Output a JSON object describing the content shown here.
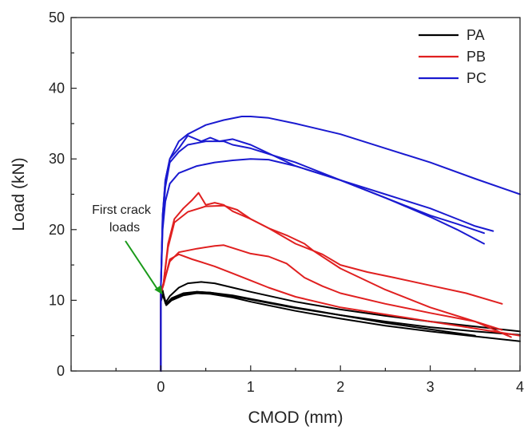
{
  "chart_data": {
    "type": "line",
    "title": "",
    "xlabel": "CMOD (mm)",
    "ylabel": "Load (kN)",
    "xlim": [
      -1,
      4
    ],
    "ylim": [
      0,
      50
    ],
    "xticks": [
      0,
      1,
      2,
      3,
      4
    ],
    "yticks": [
      0,
      10,
      20,
      30,
      40,
      50
    ],
    "grid": false,
    "legend_position": "top-right",
    "annotation": {
      "lines": [
        "First crack",
        "loads"
      ],
      "arrow_color": "#1a9a1a",
      "target": [
        0.02,
        10.8
      ]
    },
    "series": [
      {
        "name": "PA",
        "color": "#000000",
        "show_in_legend": true,
        "x": [
          0,
          0,
          0.02,
          0.05,
          0.1,
          0.2,
          0.3,
          0.45,
          0.6,
          0.8,
          1.0,
          1.5,
          2.0,
          2.5,
          3.0,
          3.5,
          4.0
        ],
        "y": [
          0,
          10.5,
          11.4,
          9.6,
          10.6,
          11.8,
          12.4,
          12.6,
          12.4,
          11.8,
          11.2,
          9.8,
          8.7,
          7.8,
          7.0,
          6.3,
          5.6
        ]
      },
      {
        "name": "",
        "color": "#000000",
        "show_in_legend": false,
        "x": [
          0,
          0,
          0.02,
          0.06,
          0.12,
          0.25,
          0.4,
          0.55,
          0.8,
          1.0,
          1.5,
          2.0,
          2.5,
          3.0,
          3.5,
          4.0
        ],
        "y": [
          0,
          10.0,
          11.0,
          9.4,
          10.2,
          10.9,
          11.2,
          11.1,
          10.6,
          10.1,
          8.9,
          7.9,
          7.0,
          6.2,
          5.6,
          5.1
        ]
      },
      {
        "name": "",
        "color": "#000000",
        "show_in_legend": false,
        "x": [
          0,
          0,
          0.02,
          0.06,
          0.12,
          0.25,
          0.4,
          0.55,
          0.8,
          1.0,
          1.5,
          2.0,
          2.5,
          3.0,
          3.5,
          4.0
        ],
        "y": [
          0,
          9.8,
          10.8,
          9.3,
          10.0,
          10.7,
          11.0,
          10.9,
          10.4,
          9.8,
          8.5,
          7.4,
          6.4,
          5.6,
          4.9,
          4.2
        ]
      },
      {
        "name": "",
        "color": "#000000",
        "show_in_legend": false,
        "x": [
          0,
          0,
          0.02,
          0.06,
          0.12,
          0.25,
          0.4,
          0.55,
          0.8,
          1.0,
          1.5,
          2.0,
          2.5,
          3.0,
          3.5
        ],
        "y": [
          0,
          10.2,
          11.2,
          9.5,
          10.3,
          11.0,
          11.2,
          11.1,
          10.7,
          10.2,
          9.0,
          7.9,
          6.8,
          5.9,
          5.0
        ]
      },
      {
        "name": "PB",
        "color": "#e02020",
        "show_in_legend": true,
        "x": [
          0,
          0,
          0.03,
          0.08,
          0.15,
          0.25,
          0.35,
          0.42,
          0.5,
          0.6,
          0.7,
          0.8,
          1.0,
          1.2,
          1.5,
          1.8,
          2.0,
          2.3,
          2.6,
          3.0,
          3.4,
          3.8
        ],
        "y": [
          0,
          11.0,
          12.5,
          18.0,
          21.5,
          23.0,
          24.2,
          25.2,
          23.5,
          23.8,
          23.5,
          22.6,
          21.5,
          20.2,
          18.0,
          16.5,
          15.0,
          14.0,
          13.2,
          12.1,
          11.0,
          9.5
        ]
      },
      {
        "name": "",
        "color": "#e02020",
        "show_in_legend": false,
        "x": [
          0,
          0,
          0.03,
          0.08,
          0.15,
          0.3,
          0.5,
          0.7,
          0.85,
          1.0,
          1.2,
          1.4,
          1.6,
          1.7,
          2.0,
          2.5,
          3.0,
          3.5,
          3.9
        ],
        "y": [
          0,
          11.0,
          12.5,
          17.5,
          21.0,
          22.5,
          23.3,
          23.4,
          22.8,
          21.5,
          20.2,
          19.2,
          18.0,
          17.0,
          14.5,
          11.5,
          9.0,
          7.0,
          4.8
        ]
      },
      {
        "name": "",
        "color": "#e02020",
        "show_in_legend": false,
        "x": [
          0,
          0,
          0.03,
          0.1,
          0.2,
          0.4,
          0.6,
          0.7,
          0.8,
          1.0,
          1.2,
          1.4,
          1.6,
          1.8,
          2.0,
          2.5,
          3.0,
          3.5,
          3.8
        ],
        "y": [
          0,
          11.0,
          12.4,
          15.5,
          16.8,
          17.3,
          17.7,
          17.8,
          17.4,
          16.6,
          16.2,
          15.2,
          13.2,
          12.0,
          11.0,
          9.5,
          8.2,
          7.0,
          5.8
        ]
      },
      {
        "name": "",
        "color": "#e02020",
        "show_in_legend": false,
        "x": [
          0,
          0,
          0.03,
          0.1,
          0.2,
          0.35,
          0.5,
          0.6,
          0.8,
          1.0,
          1.2,
          1.5,
          2.0,
          2.5,
          3.0,
          3.5,
          4.0
        ],
        "y": [
          0,
          11.0,
          12.2,
          15.8,
          16.5,
          15.8,
          15.2,
          14.8,
          13.8,
          12.8,
          11.8,
          10.5,
          9.0,
          8.0,
          7.0,
          6.0,
          5.0
        ]
      },
      {
        "name": "PC",
        "color": "#1a1ad0",
        "show_in_legend": true,
        "x": [
          0,
          0,
          0.02,
          0.05,
          0.1,
          0.2,
          0.3,
          0.5,
          0.7,
          0.9,
          1.0,
          1.2,
          1.5,
          2.0,
          2.5,
          3.0,
          3.5,
          4.0
        ],
        "y": [
          0,
          12.0,
          22.0,
          27.0,
          30.0,
          32.5,
          33.5,
          34.8,
          35.5,
          36.0,
          36.0,
          35.8,
          35.0,
          33.5,
          31.5,
          29.5,
          27.2,
          25.0
        ]
      },
      {
        "name": "",
        "color": "#1a1ad0",
        "show_in_legend": false,
        "x": [
          0,
          0,
          0.02,
          0.05,
          0.1,
          0.2,
          0.3,
          0.45,
          0.55,
          0.65,
          0.8,
          1.0,
          1.5,
          2.0,
          2.5,
          3.0,
          3.3,
          3.5,
          3.7
        ],
        "y": [
          0,
          12.0,
          22.0,
          27.0,
          30.0,
          31.5,
          33.3,
          32.5,
          33.0,
          32.5,
          32.8,
          32.0,
          29.0,
          27.0,
          25.0,
          23.0,
          21.5,
          20.5,
          19.8
        ]
      },
      {
        "name": "",
        "color": "#1a1ad0",
        "show_in_legend": false,
        "x": [
          0,
          0,
          0.02,
          0.05,
          0.1,
          0.2,
          0.3,
          0.5,
          0.7,
          0.8,
          1.0,
          1.5,
          2.0,
          2.5,
          3.0,
          3.3,
          3.6
        ],
        "y": [
          0,
          12.0,
          21.0,
          26.0,
          29.5,
          31.0,
          32.0,
          32.5,
          32.5,
          32.0,
          31.5,
          29.5,
          27.0,
          24.5,
          22.0,
          20.8,
          19.5
        ]
      },
      {
        "name": "",
        "color": "#1a1ad0",
        "show_in_legend": false,
        "x": [
          0,
          0,
          0.02,
          0.05,
          0.1,
          0.2,
          0.4,
          0.6,
          0.8,
          1.0,
          1.2,
          1.5,
          2.0,
          2.5,
          3.0,
          3.3,
          3.6
        ],
        "y": [
          0,
          12.0,
          20.0,
          24.0,
          26.5,
          28.0,
          29.0,
          29.5,
          29.8,
          30.0,
          29.9,
          29.0,
          27.0,
          24.5,
          21.8,
          20.0,
          18.0
        ]
      }
    ]
  }
}
